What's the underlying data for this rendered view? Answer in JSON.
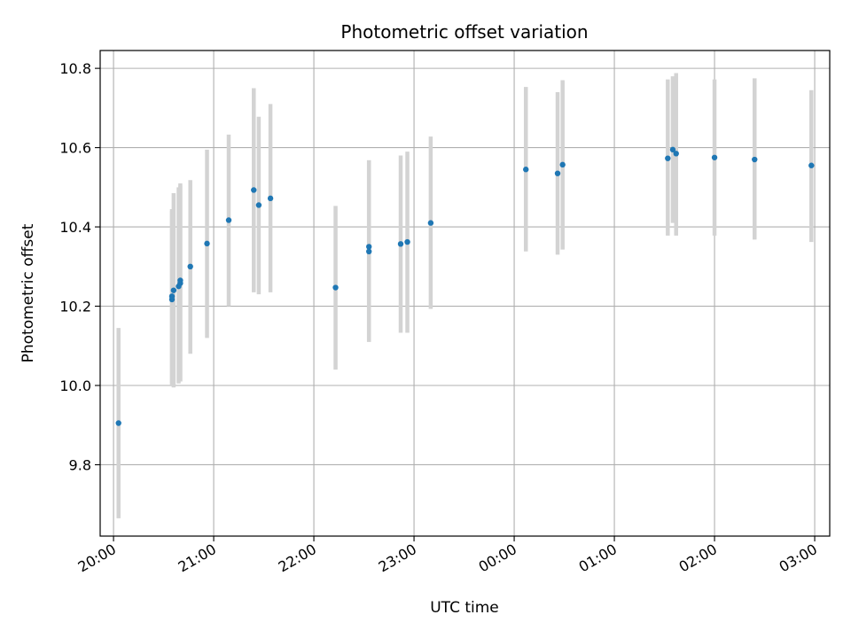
{
  "chart_data": {
    "type": "scatter",
    "title": "Photometric offset variation",
    "xlabel": "UTC time",
    "ylabel": "Photometric offset",
    "x_unit": "UTC clock time, crossing midnight",
    "x_range": [
      "19:52",
      "03:09"
    ],
    "xticks": [
      "20:00",
      "21:00",
      "22:00",
      "23:00",
      "00:00",
      "01:00",
      "02:00",
      "03:00"
    ],
    "ylim": [
      9.62,
      10.845
    ],
    "yticks": [
      "9.8",
      "10.0",
      "10.2",
      "10.4",
      "10.6",
      "10.8"
    ],
    "grid": true,
    "legend": "none",
    "colors": {
      "point": "#1f77b4",
      "errorbar": "#d3d3d3",
      "grid": "#b0b0b0",
      "axis": "#000000"
    },
    "series": [
      {
        "points": [
          {
            "t": "20:03",
            "y": 9.905,
            "lo": 9.665,
            "hi": 10.145
          },
          {
            "t": "20:35",
            "y": 10.217,
            "lo": 10.0,
            "hi": 10.44
          },
          {
            "t": "20:35",
            "y": 10.225,
            "lo": 10.005,
            "hi": 10.445
          },
          {
            "t": "20:36",
            "y": 10.24,
            "lo": 9.995,
            "hi": 10.485
          },
          {
            "t": "20:39",
            "y": 10.25,
            "lo": 10.005,
            "hi": 10.5
          },
          {
            "t": "20:40",
            "y": 10.258,
            "lo": 10.01,
            "hi": 10.505
          },
          {
            "t": "20:40",
            "y": 10.265,
            "lo": 10.01,
            "hi": 10.51
          },
          {
            "t": "20:46",
            "y": 10.3,
            "lo": 10.08,
            "hi": 10.518
          },
          {
            "t": "20:56",
            "y": 10.358,
            "lo": 10.12,
            "hi": 10.595
          },
          {
            "t": "21:09",
            "y": 10.417,
            "lo": 10.2,
            "hi": 10.633
          },
          {
            "t": "21:24",
            "y": 10.493,
            "lo": 10.235,
            "hi": 10.75
          },
          {
            "t": "21:27",
            "y": 10.455,
            "lo": 10.23,
            "hi": 10.678
          },
          {
            "t": "21:34",
            "y": 10.472,
            "lo": 10.235,
            "hi": 10.71
          },
          {
            "t": "22:13",
            "y": 10.247,
            "lo": 10.04,
            "hi": 10.453
          },
          {
            "t": "22:33",
            "y": 10.35,
            "lo": 10.11,
            "hi": 10.568
          },
          {
            "t": "22:33",
            "y": 10.338,
            "lo": 10.11,
            "hi": 10.568
          },
          {
            "t": "22:52",
            "y": 10.357,
            "lo": 10.133,
            "hi": 10.58
          },
          {
            "t": "22:56",
            "y": 10.362,
            "lo": 10.133,
            "hi": 10.59
          },
          {
            "t": "23:10",
            "y": 10.41,
            "lo": 10.193,
            "hi": 10.628
          },
          {
            "t": "00:07",
            "y": 10.545,
            "lo": 10.338,
            "hi": 10.753
          },
          {
            "t": "00:26",
            "y": 10.535,
            "lo": 10.33,
            "hi": 10.74
          },
          {
            "t": "00:29",
            "y": 10.557,
            "lo": 10.343,
            "hi": 10.77
          },
          {
            "t": "01:32",
            "y": 10.573,
            "lo": 10.378,
            "hi": 10.772
          },
          {
            "t": "01:35",
            "y": 10.595,
            "lo": 10.41,
            "hi": 10.78
          },
          {
            "t": "01:37",
            "y": 10.585,
            "lo": 10.378,
            "hi": 10.788
          },
          {
            "t": "02:00",
            "y": 10.575,
            "lo": 10.378,
            "hi": 10.772
          },
          {
            "t": "02:24",
            "y": 10.57,
            "lo": 10.368,
            "hi": 10.775
          },
          {
            "t": "02:58",
            "y": 10.555,
            "lo": 10.362,
            "hi": 10.745
          }
        ]
      }
    ]
  }
}
